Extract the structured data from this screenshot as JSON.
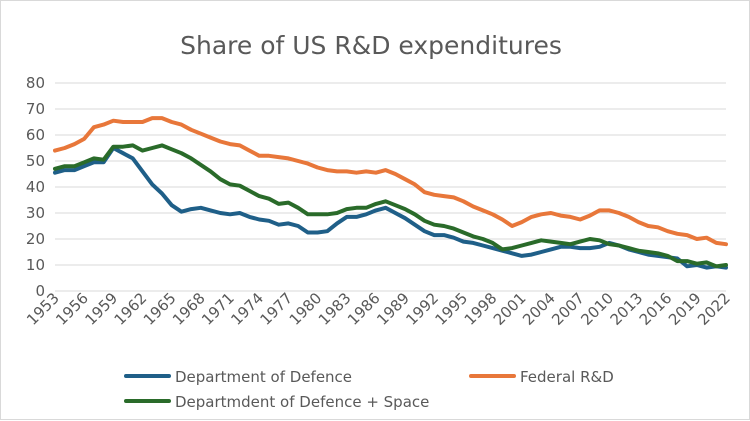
{
  "chart_data": {
    "type": "line",
    "title": "Share of US R&D expenditures",
    "xlabel": "",
    "ylabel": "",
    "ylim": [
      0,
      80
    ],
    "yticks": [
      "0",
      "10",
      "20",
      "30",
      "40",
      "50",
      "60",
      "70",
      "80"
    ],
    "grid": true,
    "legend_position": "bottom",
    "categories": [
      "1953",
      "1954",
      "1955",
      "1956",
      "1957",
      "1958",
      "1959",
      "1960",
      "1961",
      "1962",
      "1963",
      "1964",
      "1965",
      "1966",
      "1967",
      "1968",
      "1969",
      "1970",
      "1971",
      "1972",
      "1973",
      "1974",
      "1975",
      "1976",
      "1977",
      "1978",
      "1979",
      "1980",
      "1981",
      "1982",
      "1983",
      "1984",
      "1985",
      "1986",
      "1987",
      "1988",
      "1989",
      "1990",
      "1991",
      "1992",
      "1993",
      "1994",
      "1995",
      "1996",
      "1997",
      "1998",
      "1999",
      "2000",
      "2001",
      "2002",
      "2003",
      "2004",
      "2005",
      "2006",
      "2007",
      "2008",
      "2009",
      "2010",
      "2011",
      "2012",
      "2013",
      "2014",
      "2015",
      "2016",
      "2017",
      "2018",
      "2019",
      "2020",
      "2021",
      "2022"
    ],
    "tick_labels": [
      "1953",
      "1956",
      "1959",
      "1962",
      "1965",
      "1968",
      "1971",
      "1974",
      "1977",
      "1980",
      "1983",
      "1986",
      "1989",
      "1992",
      "1995",
      "1998",
      "2001",
      "2004",
      "2007",
      "2010",
      "2013",
      "2016",
      "2019",
      "2022"
    ],
    "series": [
      {
        "name": "Department of Defence",
        "color": "#1f5f88",
        "values": [
          45.5,
          46.5,
          46.5,
          48,
          49.5,
          49.5,
          55,
          53,
          51,
          46,
          41,
          37.5,
          33,
          30.5,
          31.5,
          32,
          31,
          30,
          29.5,
          30,
          28.5,
          27.5,
          27,
          25.5,
          26,
          25,
          22.5,
          22.5,
          23,
          26,
          28.5,
          28.5,
          29.5,
          31,
          32,
          30,
          28,
          25.5,
          23,
          21.5,
          21.5,
          20.5,
          19,
          18.5,
          17.5,
          16.5,
          15.5,
          14.5,
          13.5,
          14,
          15,
          16,
          17,
          17,
          16.5,
          16.5,
          17,
          18.5,
          17.5,
          16,
          15,
          14,
          13.5,
          13,
          12.5,
          9.5,
          10,
          9,
          9.5,
          9
        ]
      },
      {
        "name": "Federal R&D",
        "color": "#e8773a",
        "values": [
          54,
          55,
          56.5,
          58.5,
          63,
          64,
          65.5,
          65,
          65,
          65,
          66.5,
          66.5,
          65,
          64,
          62,
          60.5,
          59,
          57.5,
          56.5,
          56,
          54,
          52,
          52,
          51.5,
          51,
          50,
          49,
          47.5,
          46.5,
          46,
          46,
          45.5,
          46,
          45.5,
          46.5,
          45,
          43,
          41,
          38,
          37,
          36.5,
          36,
          34.5,
          32.5,
          31,
          29.5,
          27.5,
          25,
          26.5,
          28.5,
          29.5,
          30,
          29,
          28.5,
          27.5,
          29,
          31,
          31,
          30,
          28.5,
          26.5,
          25,
          24.5,
          23,
          22,
          21.5,
          20,
          20.5,
          18.5,
          18
        ]
      },
      {
        "name": "Departmdent of Defence + Space",
        "color": "#2a6b2a",
        "values": [
          47,
          48,
          48,
          49.5,
          51,
          50.5,
          55.5,
          55.5,
          56,
          54,
          55,
          56,
          54.5,
          53,
          51,
          48.5,
          46,
          43,
          41,
          40.5,
          38.5,
          36.5,
          35.5,
          33.5,
          34,
          32,
          29.5,
          29.5,
          29.5,
          30,
          31.5,
          32,
          32,
          33.5,
          34.5,
          33,
          31.5,
          29.5,
          27,
          25.5,
          25,
          24,
          22.5,
          21,
          20,
          18.5,
          16,
          16.5,
          17.5,
          18.5,
          19.5,
          19,
          18.5,
          18,
          19,
          20,
          19.5,
          18,
          17.5,
          16.5,
          15.5,
          15,
          14.5,
          13.5,
          11.5,
          11.5,
          10.5,
          11,
          9.5,
          10
        ]
      }
    ]
  }
}
